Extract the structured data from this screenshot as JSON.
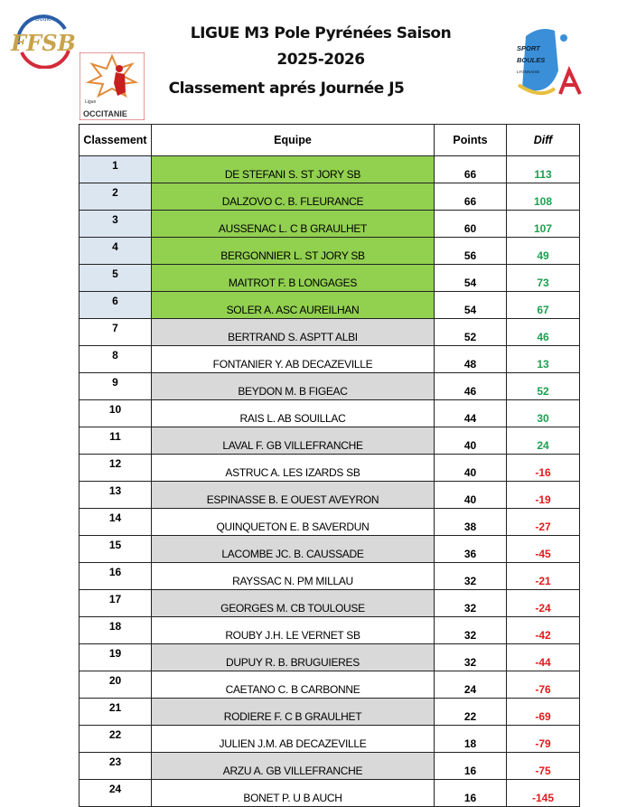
{
  "header": {
    "line1": "LIGUE M3 Pole Pyrénées   Saison",
    "line2": "2025-2026",
    "line3": "Classement  aprés Journée  J5",
    "logos": {
      "ffsb": "FFSB",
      "occitanie_small": "Ligue",
      "occitanie": "OCCITANIE",
      "sport_boules": [
        "SPORT",
        "BOULES",
        "LYONNAISE"
      ]
    }
  },
  "colors": {
    "top_rank_bg": "#dce6f1",
    "top_team_bg": "#92d050",
    "alt_row_bg": "#d9d9d9",
    "positive": "#1f9e50",
    "negative": "#e01b1b"
  },
  "table": {
    "columns": [
      "Classement",
      "Equipe",
      "Points",
      "Diff"
    ],
    "rows": [
      {
        "rank": "1",
        "team": "DE STEFANI S. ST JORY SB",
        "points": "66",
        "diff": "113"
      },
      {
        "rank": "2",
        "team": "DALZOVO C.  B. FLEURANCE",
        "points": "66",
        "diff": "108"
      },
      {
        "rank": "3",
        "team": "AUSSENAC L.  C B GRAULHET",
        "points": "60",
        "diff": "107"
      },
      {
        "rank": "4",
        "team": "BERGONNIER L.  ST JORY SB",
        "points": "56",
        "diff": "49"
      },
      {
        "rank": "5",
        "team": "MAITROT F.  B LONGAGES",
        "points": "54",
        "diff": "73"
      },
      {
        "rank": "6",
        "team": "SOLER A.  ASC AUREILHAN",
        "points": "54",
        "diff": "67"
      },
      {
        "rank": "7",
        "team": "BERTRAND S.  ASPTT ALBI",
        "points": "52",
        "diff": "46"
      },
      {
        "rank": "8",
        "team": "FONTANIER Y. AB DECAZEVILLE",
        "points": "48",
        "diff": "13"
      },
      {
        "rank": "9",
        "team": "BEYDON M.  B FIGEAC",
        "points": "46",
        "diff": "52"
      },
      {
        "rank": "10",
        "team": "RAIS L.  AB SOUILLAC",
        "points": "44",
        "diff": "30"
      },
      {
        "rank": "11",
        "team": "LAVAL F.  GB VILLEFRANCHE",
        "points": "40",
        "diff": "24"
      },
      {
        "rank": "12",
        "team": "ASTRUC A.  LES IZARDS SB",
        "points": "40",
        "diff": "-16"
      },
      {
        "rank": "13",
        "team": "ESPINASSE B. E OUEST AVEYRON",
        "points": "40",
        "diff": "-19"
      },
      {
        "rank": "14",
        "team": "QUINQUETON E.  B  SAVERDUN",
        "points": "38",
        "diff": "-27"
      },
      {
        "rank": "15",
        "team": "LACOMBE JC.  B. CAUSSADE",
        "points": "36",
        "diff": "-45"
      },
      {
        "rank": "16",
        "team": "RAYSSAC N.   PM MILLAU",
        "points": "32",
        "diff": "-21"
      },
      {
        "rank": "17",
        "team": "GEORGES M.  CB TOULOUSE",
        "points": "32",
        "diff": "-24"
      },
      {
        "rank": "18",
        "team": "ROUBY J.H.  LE VERNET SB",
        "points": "32",
        "diff": "-42"
      },
      {
        "rank": "19",
        "team": "DUPUY  R.   B. BRUGUIERES",
        "points": "32",
        "diff": "-44"
      },
      {
        "rank": "20",
        "team": "CAETANO C.  B CARBONNE",
        "points": "24",
        "diff": "-76"
      },
      {
        "rank": "21",
        "team": "RODIERE F.  C B GRAULHET",
        "points": "22",
        "diff": "-69"
      },
      {
        "rank": "22",
        "team": "JULIEN J.M.  AB DECAZEVILLE",
        "points": "18",
        "diff": "-79"
      },
      {
        "rank": "23",
        "team": "ARZU A. GB VILLEFRANCHE",
        "points": "16",
        "diff": "-75"
      },
      {
        "rank": "24",
        "team": "BONET P.  U B AUCH",
        "points": "16",
        "diff": "-145"
      }
    ]
  }
}
